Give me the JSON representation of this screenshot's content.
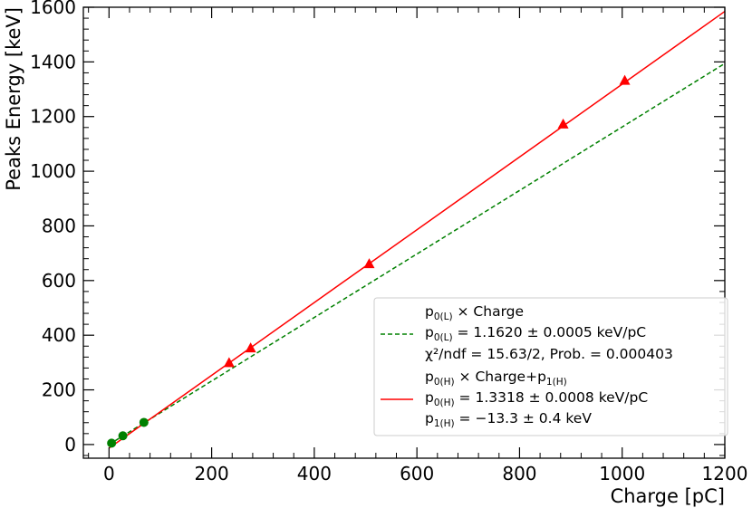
{
  "chart_data": {
    "type": "scatter",
    "title": "",
    "xlabel": "Charge [pC]",
    "ylabel": "Peaks Energy [keV]",
    "xlim": [
      -50,
      1200
    ],
    "ylim": [
      -50,
      1600
    ],
    "xticks": [
      0,
      200,
      400,
      600,
      800,
      1000,
      1200
    ],
    "yticks": [
      0,
      200,
      400,
      600,
      800,
      1000,
      1200,
      1400,
      1600
    ],
    "grid": false,
    "legend_position": "lower-right",
    "series": [
      {
        "marker": "circle",
        "color": "#008000",
        "points": [
          [
            5,
            5
          ],
          [
            27,
            32
          ],
          [
            68,
            81
          ]
        ]
      },
      {
        "marker": "triangle",
        "color": "#ff0000",
        "points": [
          [
            234,
            300
          ],
          [
            276,
            354
          ],
          [
            507,
            662
          ],
          [
            885,
            1173
          ],
          [
            1005,
            1333
          ]
        ]
      }
    ],
    "fits": [
      {
        "style": "dashed",
        "color": "#008000",
        "slope": 1.162,
        "intercept": 0,
        "x_range": [
          0,
          1200
        ],
        "legend": {
          "formula": {
            "p": "p",
            "sub": "0(L)",
            "rest": " × Charge"
          },
          "param": {
            "p": "p",
            "sub": "0(L)",
            "rest": " = 1.1620 ± 0.0005 keV/pC"
          },
          "chi2": "χ²/ndf = 15.63/2, Prob. = 0.000403"
        }
      },
      {
        "style": "solid",
        "color": "#ff0000",
        "slope": 1.3318,
        "intercept": -13.3,
        "x_range": [
          0,
          1200
        ],
        "legend": {
          "formula": {
            "p": "p",
            "sub": "0(H)",
            "mid": " × Charge+p",
            "sub2": "1(H)"
          },
          "param0": {
            "p": "p",
            "sub": "0(H)",
            "rest": " = 1.3318 ± 0.0008 keV/pC"
          },
          "param1": {
            "p": "p",
            "sub": "1(H)",
            "rest": " = −13.3 ± 0.4 keV"
          }
        }
      }
    ]
  }
}
